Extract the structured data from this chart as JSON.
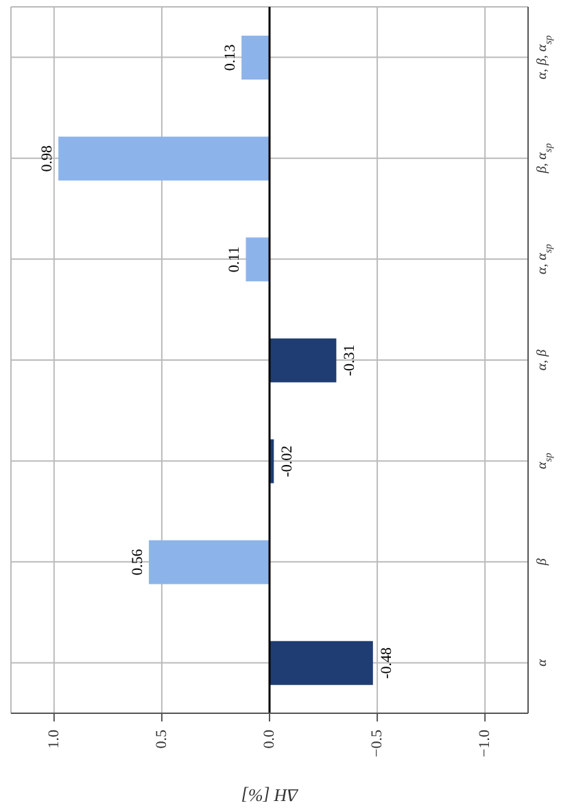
{
  "chart_data": {
    "type": "bar",
    "orientation": "horizontal",
    "xlabel": "ΔH [%]",
    "categories": [
      "α, β, α$_{sp}$",
      "β, α$_{sp}$",
      "α, α$_{sp}$",
      "α, β",
      "α$_{sp}$",
      "β",
      "α"
    ],
    "values": [
      0.13,
      0.98,
      0.11,
      -0.31,
      -0.02,
      0.56,
      -0.48
    ],
    "colors": [
      "#8db4ea",
      "#8db4ea",
      "#8db4ea",
      "#1f3d72",
      "#1f3d72",
      "#8db4ea",
      "#1f3d72"
    ],
    "xlim": [
      1.2,
      -1.2
    ],
    "xticks": [
      {
        "value": 1,
        "label": "1.0"
      },
      {
        "value": 0.5,
        "label": "0.5"
      },
      {
        "value": 0,
        "label": "0.0"
      },
      {
        "value": -0.5,
        "label": "−0.5"
      },
      {
        "value": -1,
        "label": "−1.0"
      }
    ],
    "grid": true,
    "data_labels": true,
    "ref_lines": [
      {
        "axis": "x",
        "value": 0,
        "color": "#000000"
      }
    ]
  }
}
